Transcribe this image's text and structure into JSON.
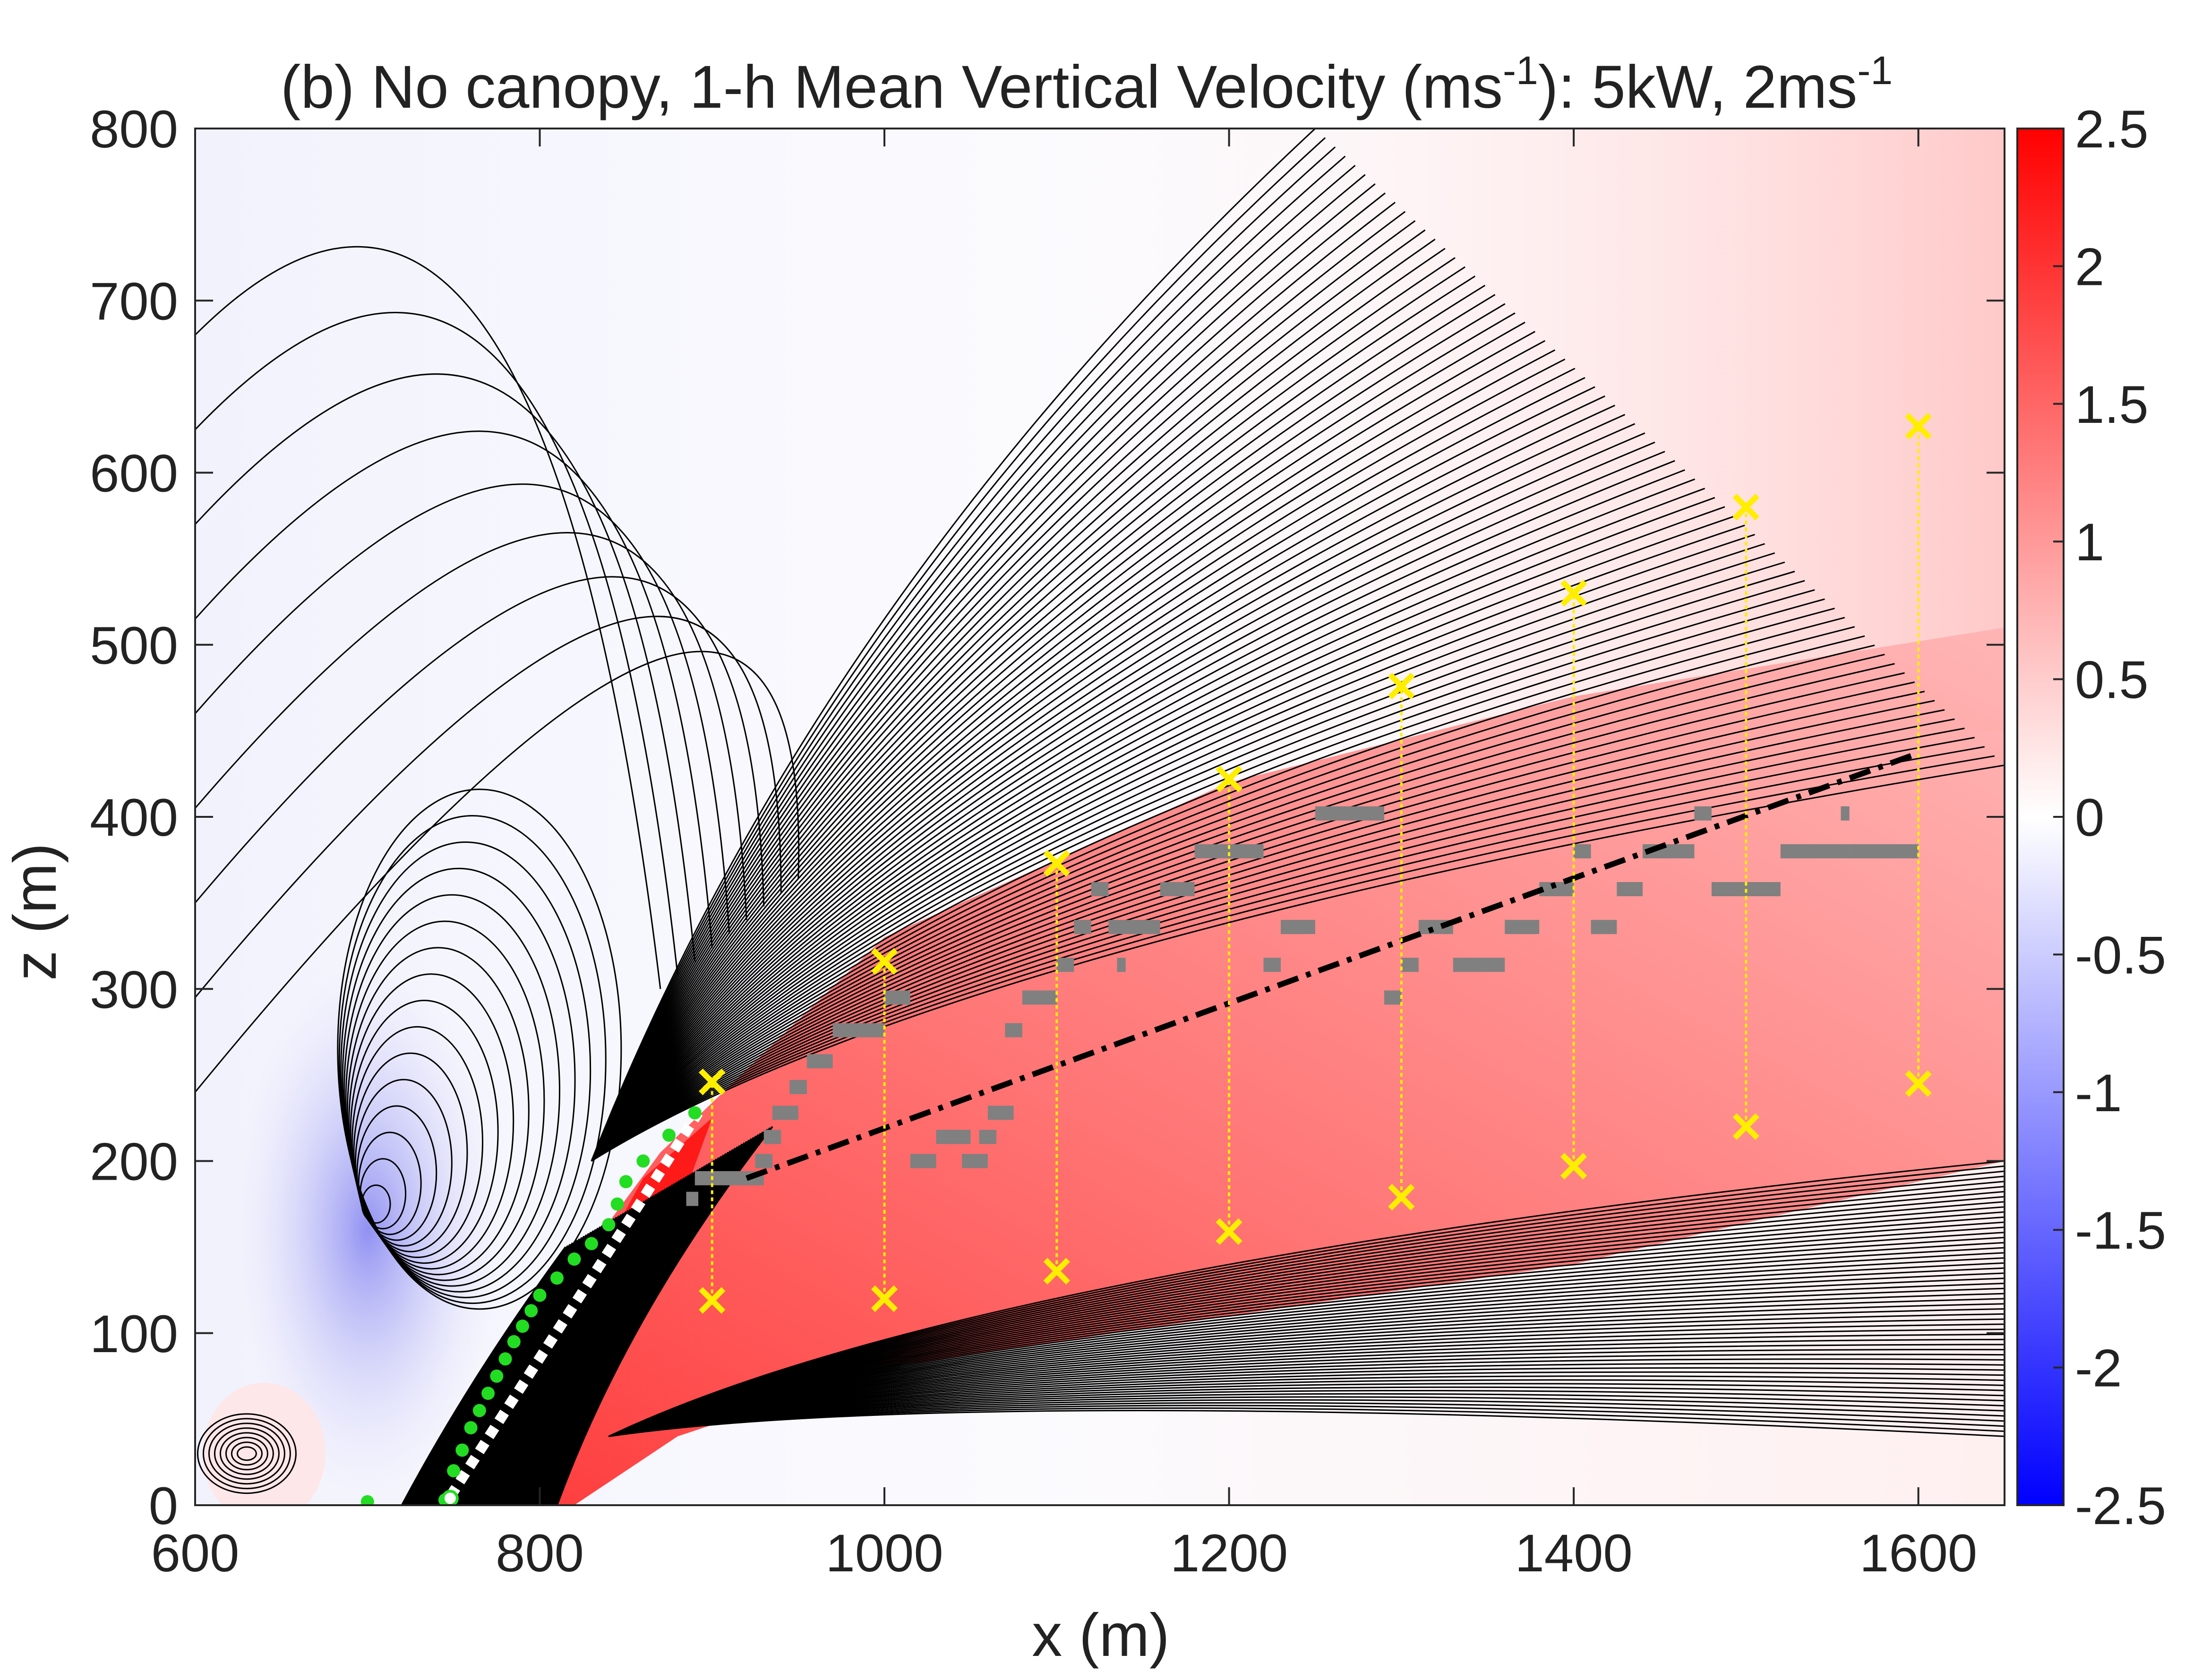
{
  "chart_data": {
    "type": "heatmap",
    "title": "(b) No canopy, 1-h Mean Vertical Velocity (ms",
    "title_sup1": "-1",
    "title_mid": "): 5kW, 2ms",
    "title_sup2": "-1",
    "xlabel": "x (m)",
    "ylabel": "z (m)",
    "xlim": [
      600,
      1650
    ],
    "ylim": [
      0,
      800
    ],
    "xticks": [
      "600",
      "800",
      "1000",
      "1200",
      "1400",
      "1600"
    ],
    "yticks": [
      "0",
      "100",
      "200",
      "300",
      "400",
      "500",
      "600",
      "700",
      "800"
    ],
    "colorbar": {
      "range": [
        -2.5,
        2.5
      ],
      "ticks": [
        "-2.5",
        "-2",
        "-1.5",
        "-1",
        "-0.5",
        "0",
        "0.5",
        "1",
        "1.5",
        "2",
        "2.5"
      ],
      "colormap": "blue-white-red"
    },
    "colors": {
      "negative": "#0000ff",
      "zero": "#ffffff",
      "positive": "#ff0000",
      "contour": "#000000",
      "green_points": "#22dd22",
      "white_line": "#ffffff",
      "fit_line": "#000000",
      "range_markers": "#ffee00",
      "gray_marks": "#808080"
    },
    "plume_range_markers": [
      {
        "x": 900,
        "z_bottom": 119,
        "z_top": 246
      },
      {
        "x": 1000,
        "z_bottom": 120,
        "z_top": 316
      },
      {
        "x": 1100,
        "z_bottom": 136,
        "z_top": 373
      },
      {
        "x": 1200,
        "z_bottom": 159,
        "z_top": 422
      },
      {
        "x": 1300,
        "z_bottom": 179,
        "z_top": 476
      },
      {
        "x": 1400,
        "z_bottom": 197,
        "z_top": 530
      },
      {
        "x": 1500,
        "z_bottom": 220,
        "z_top": 580
      },
      {
        "x": 1600,
        "z_bottom": 245,
        "z_top": 627
      }
    ],
    "centerline_fit": {
      "x": [
        920,
        1600
      ],
      "z": [
        190,
        437
      ]
    },
    "near_source_line": {
      "x": [
        748,
        892
      ],
      "z": [
        5,
        228
      ]
    },
    "green_points": [
      {
        "x": 700,
        "z": 2
      },
      {
        "x": 745,
        "z": 3
      },
      {
        "x": 750,
        "z": 20
      },
      {
        "x": 755,
        "z": 32
      },
      {
        "x": 760,
        "z": 45
      },
      {
        "x": 765,
        "z": 55
      },
      {
        "x": 770,
        "z": 65
      },
      {
        "x": 775,
        "z": 75
      },
      {
        "x": 780,
        "z": 85
      },
      {
        "x": 785,
        "z": 95
      },
      {
        "x": 790,
        "z": 104
      },
      {
        "x": 795,
        "z": 113
      },
      {
        "x": 800,
        "z": 122
      },
      {
        "x": 810,
        "z": 132
      },
      {
        "x": 820,
        "z": 143
      },
      {
        "x": 830,
        "z": 152
      },
      {
        "x": 840,
        "z": 163
      },
      {
        "x": 845,
        "z": 175
      },
      {
        "x": 850,
        "z": 188
      },
      {
        "x": 860,
        "z": 200
      },
      {
        "x": 875,
        "z": 215
      },
      {
        "x": 890,
        "z": 228
      }
    ],
    "gray_segments": [
      {
        "x0": 890,
        "x1": 930,
        "z": 190
      },
      {
        "x0": 885,
        "x1": 892,
        "z": 178
      },
      {
        "x0": 925,
        "x1": 935,
        "z": 200
      },
      {
        "x0": 930,
        "x1": 940,
        "z": 214
      },
      {
        "x0": 935,
        "x1": 950,
        "z": 228
      },
      {
        "x0": 945,
        "x1": 955,
        "z": 243
      },
      {
        "x0": 955,
        "x1": 970,
        "z": 258
      },
      {
        "x0": 970,
        "x1": 1000,
        "z": 276
      },
      {
        "x0": 1000,
        "x1": 1015,
        "z": 295
      },
      {
        "x0": 1015,
        "x1": 1030,
        "z": 200
      },
      {
        "x0": 1030,
        "x1": 1050,
        "z": 214
      },
      {
        "x0": 1045,
        "x1": 1060,
        "z": 200
      },
      {
        "x0": 1055,
        "x1": 1065,
        "z": 214
      },
      {
        "x0": 1060,
        "x1": 1075,
        "z": 228
      },
      {
        "x0": 1070,
        "x1": 1080,
        "z": 276
      },
      {
        "x0": 1080,
        "x1": 1100,
        "z": 295
      },
      {
        "x0": 1100,
        "x1": 1110,
        "z": 314
      },
      {
        "x0": 1110,
        "x1": 1120,
        "z": 336
      },
      {
        "x0": 1120,
        "x1": 1130,
        "z": 358
      },
      {
        "x0": 1135,
        "x1": 1140,
        "z": 314
      },
      {
        "x0": 1130,
        "x1": 1160,
        "z": 336
      },
      {
        "x0": 1160,
        "x1": 1180,
        "z": 358
      },
      {
        "x0": 1180,
        "x1": 1220,
        "z": 380
      },
      {
        "x0": 1220,
        "x1": 1230,
        "z": 314
      },
      {
        "x0": 1230,
        "x1": 1250,
        "z": 336
      },
      {
        "x0": 1250,
        "x1": 1290,
        "z": 402
      },
      {
        "x0": 1290,
        "x1": 1300,
        "z": 295
      },
      {
        "x0": 1300,
        "x1": 1310,
        "z": 314
      },
      {
        "x0": 1310,
        "x1": 1330,
        "z": 336
      },
      {
        "x0": 1330,
        "x1": 1360,
        "z": 314
      },
      {
        "x0": 1360,
        "x1": 1380,
        "z": 336
      },
      {
        "x0": 1380,
        "x1": 1400,
        "z": 358
      },
      {
        "x0": 1400,
        "x1": 1410,
        "z": 380
      },
      {
        "x0": 1410,
        "x1": 1425,
        "z": 336
      },
      {
        "x0": 1425,
        "x1": 1440,
        "z": 358
      },
      {
        "x0": 1440,
        "x1": 1470,
        "z": 380
      },
      {
        "x0": 1470,
        "x1": 1480,
        "z": 402
      },
      {
        "x0": 1480,
        "x1": 1520,
        "z": 358
      },
      {
        "x0": 1520,
        "x1": 1560,
        "z": 380
      },
      {
        "x0": 1555,
        "x1": 1560,
        "z": 402
      },
      {
        "x0": 1560,
        "x1": 1600,
        "z": 380
      }
    ]
  }
}
